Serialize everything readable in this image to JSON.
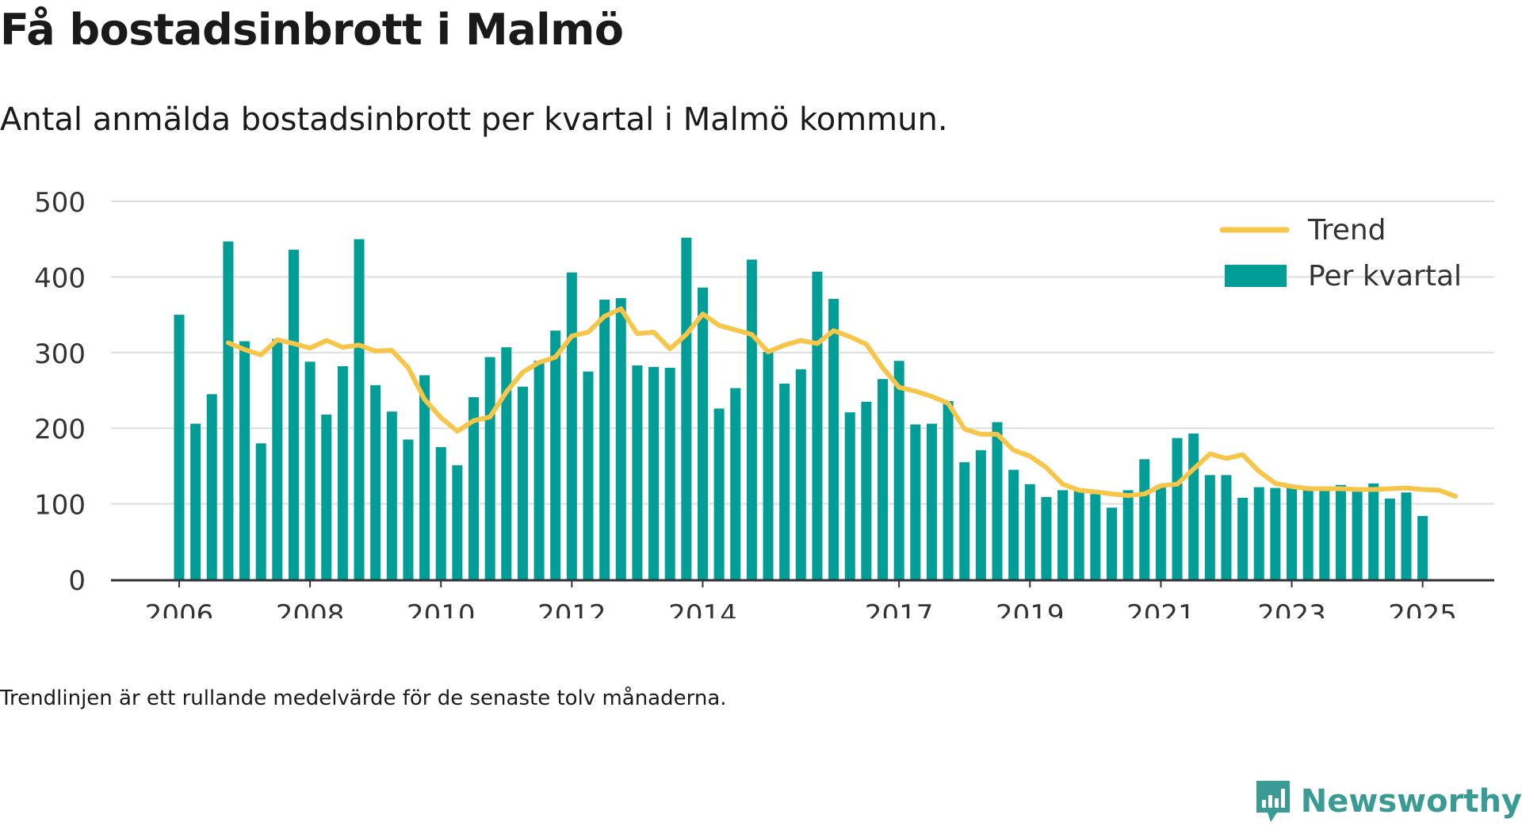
{
  "title": "Få bostadsinbrott i Malmö",
  "subtitle": "Antal anmälda bostadsinbrott per kvartal i Malmö kommun.",
  "footnote": "Trendlinjen är ett rullande medelvärde för de senaste tolv månaderna.",
  "brand": "Newsworthy",
  "colors": {
    "bar": "#009e96",
    "trend": "#f7c548",
    "grid": "#dddddd",
    "axis": "#333333"
  },
  "chart_data": {
    "type": "bar",
    "x_unit": "kvartal",
    "ylim": [
      0,
      500
    ],
    "yticks": [
      0,
      100,
      200,
      300,
      400,
      500
    ],
    "xticks": [
      {
        "label": "2006",
        "index": 0
      },
      {
        "label": "2008",
        "index": 8
      },
      {
        "label": "2010",
        "index": 16
      },
      {
        "label": "2012",
        "index": 24
      },
      {
        "label": "2014",
        "index": 32
      },
      {
        "label": "2017",
        "index": 44
      },
      {
        "label": "2019",
        "index": 52
      },
      {
        "label": "2021",
        "index": 60
      },
      {
        "label": "2023",
        "index": 68
      },
      {
        "label": "2025",
        "index": 76
      }
    ],
    "grid": true,
    "legend": {
      "position": "top-right",
      "trend_label": "Trend",
      "bar_label": "Per kvartal"
    },
    "series": [
      {
        "name": "Per kvartal",
        "type": "bar",
        "start_index": 0,
        "values": [
          350,
          206,
          245,
          447,
          315,
          180,
          318,
          436,
          288,
          218,
          282,
          450,
          257,
          222,
          185,
          270,
          175,
          151,
          241,
          294,
          307,
          255,
          289,
          329,
          406,
          275,
          370,
          372,
          283,
          281,
          280,
          452,
          386,
          226,
          253,
          423,
          301,
          259,
          278,
          407,
          371,
          221,
          235,
          265,
          289,
          205,
          206,
          236,
          155,
          171,
          208,
          145,
          126,
          109,
          118,
          117,
          113,
          95,
          118,
          159,
          125,
          187,
          193,
          138,
          138,
          108,
          122,
          121,
          124,
          119,
          121,
          125,
          117,
          127,
          107,
          115,
          84
        ]
      },
      {
        "name": "Trend",
        "type": "line",
        "start_index": 3,
        "values": [
          313,
          304,
          297,
          317,
          312,
          306,
          316,
          307,
          310,
          302,
          303,
          280,
          238,
          214,
          196,
          210,
          215,
          248,
          274,
          287,
          294,
          322,
          327,
          348,
          358,
          325,
          327,
          305,
          324,
          351,
          336,
          330,
          324,
          301,
          310,
          316,
          312,
          329,
          321,
          311,
          280,
          254,
          249,
          242,
          233,
          199,
          192,
          192,
          171,
          163,
          148,
          126,
          118,
          116,
          113,
          111,
          113,
          124,
          126,
          146,
          166,
          160,
          165,
          143,
          127,
          123,
          120,
          120,
          120,
          119,
          119,
          120,
          121,
          119,
          118,
          110
        ]
      }
    ]
  }
}
